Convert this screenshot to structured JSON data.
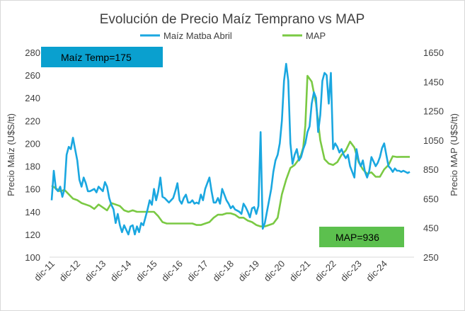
{
  "chart_data": {
    "type": "line",
    "title": "Evolución de Precio Maíz Temprano vs MAP",
    "x_tick_labels": [
      "dic-11",
      "dic-12",
      "dic-13",
      "dic-14",
      "dic-15",
      "dic-16",
      "dic-17",
      "dic-18",
      "dic-19",
      "dic-20",
      "dic-21",
      "dic-22",
      "dic-23",
      "dic-24"
    ],
    "x_unit": "months since dic-11",
    "x_range": [
      -1,
      170
    ],
    "y_left": {
      "label": "Precio Maíz (U$S/tt)",
      "range": [
        100,
        280
      ],
      "ticks": [
        100,
        120,
        140,
        160,
        180,
        200,
        220,
        240,
        260,
        280
      ]
    },
    "y_right": {
      "label": "Precio MAP (U$S/tt)",
      "range": [
        250,
        1650
      ],
      "ticks": [
        250,
        450,
        650,
        850,
        1050,
        1250,
        1450,
        1650
      ]
    },
    "grid": "vertical-none",
    "legend_position": "top",
    "series": [
      {
        "name": "Maíz Matba Abril",
        "axis": "left",
        "color": "#1aa7e0",
        "x": [
          0,
          1,
          2,
          3,
          4,
          5,
          6,
          7,
          8,
          9,
          10,
          11,
          12,
          13,
          14,
          15,
          16,
          17,
          18,
          19,
          20,
          21,
          22,
          23,
          24,
          25,
          26,
          27,
          28,
          29,
          30,
          31,
          32,
          33,
          34,
          35,
          36,
          37,
          38,
          39,
          40,
          41,
          42,
          43,
          44,
          45,
          46,
          47,
          48,
          49,
          50,
          51,
          52,
          53,
          54,
          55,
          56,
          57,
          58,
          59,
          60,
          61,
          62,
          63,
          64,
          65,
          66,
          67,
          68,
          69,
          70,
          71,
          72,
          73,
          74,
          75,
          76,
          77,
          78,
          79,
          80,
          81,
          82,
          83,
          84,
          85,
          86,
          87,
          88,
          89,
          90,
          91,
          92,
          93,
          94,
          95,
          96,
          97,
          98,
          99,
          100,
          101,
          102,
          103,
          104,
          105,
          106,
          107,
          108,
          109,
          110,
          111,
          112,
          113,
          114,
          115,
          116,
          117,
          118,
          119,
          120,
          121,
          122,
          123,
          124,
          125,
          126,
          127,
          128,
          129,
          130,
          131,
          132,
          133,
          134,
          135,
          136,
          137,
          138,
          139,
          140,
          141,
          142,
          143,
          144,
          145,
          146,
          147,
          148,
          149,
          150,
          151,
          152,
          153,
          154,
          155,
          156,
          157,
          158,
          159,
          160,
          161,
          162,
          163,
          164,
          165,
          166,
          167,
          168
        ],
        "values": [
          150,
          176,
          160,
          158,
          162,
          153,
          160,
          190,
          197,
          195,
          205,
          195,
          185,
          168,
          162,
          170,
          165,
          158,
          158,
          159,
          160,
          157,
          162,
          160,
          158,
          166,
          162,
          152,
          146,
          142,
          130,
          138,
          128,
          122,
          128,
          124,
          120,
          127,
          128,
          120,
          127,
          122,
          130,
          128,
          135,
          142,
          150,
          146,
          160,
          150,
          158,
          170,
          153,
          152,
          150,
          148,
          150,
          152,
          158,
          165,
          150,
          147,
          152,
          155,
          148,
          148,
          150,
          147,
          148,
          147,
          155,
          150,
          160,
          165,
          170,
          158,
          148,
          148,
          152,
          147,
          160,
          155,
          150,
          147,
          143,
          145,
          142,
          141,
          140,
          138,
          147,
          144,
          140,
          135,
          143,
          144,
          138,
          145,
          210,
          125,
          130,
          140,
          150,
          160,
          175,
          185,
          190,
          200,
          220,
          255,
          270,
          255,
          200,
          182,
          190,
          195,
          185,
          188,
          195,
          200,
          210,
          215,
          235,
          245,
          240,
          210,
          225,
          255,
          262,
          260,
          235,
          262,
          195,
          200,
          197,
          192,
          195,
          190,
          187,
          190,
          180,
          175,
          170,
          195,
          185,
          180,
          185,
          175,
          170,
          176,
          188,
          184,
          180,
          183,
          188,
          196,
          200,
          190,
          180,
          178,
          175,
          178,
          176,
          176,
          175,
          176,
          175,
          174,
          175
        ]
      },
      {
        "name": "MAP",
        "axis": "right",
        "color": "#7ac943",
        "x": [
          0,
          2,
          4,
          6,
          8,
          10,
          12,
          14,
          16,
          18,
          20,
          22,
          24,
          26,
          28,
          30,
          32,
          34,
          36,
          38,
          40,
          42,
          44,
          46,
          48,
          50,
          52,
          54,
          56,
          58,
          60,
          62,
          64,
          66,
          68,
          70,
          72,
          74,
          76,
          78,
          80,
          82,
          84,
          86,
          88,
          90,
          92,
          94,
          96,
          98,
          100,
          102,
          104,
          106,
          108,
          110,
          112,
          114,
          116,
          117,
          118,
          119,
          120,
          122,
          124,
          126,
          128,
          130,
          132,
          134,
          136,
          138,
          140,
          142,
          144,
          146,
          148,
          150,
          152,
          154,
          156,
          158,
          160,
          162,
          164,
          166,
          168
        ],
        "values": [
          740,
          720,
          700,
          710,
          680,
          650,
          640,
          620,
          610,
          600,
          580,
          610,
          590,
          570,
          620,
          610,
          600,
          570,
          560,
          570,
          560,
          560,
          560,
          560,
          560,
          530,
          490,
          480,
          480,
          480,
          480,
          480,
          480,
          480,
          470,
          470,
          480,
          490,
          520,
          540,
          540,
          550,
          550,
          540,
          520,
          520,
          500,
          490,
          470,
          460,
          460,
          470,
          480,
          520,
          680,
          780,
          860,
          880,
          920,
          950,
          1000,
          1150,
          1490,
          1450,
          1300,
          1050,
          920,
          890,
          880,
          900,
          950,
          980,
          1040,
          1000,
          900,
          850,
          820,
          830,
          800,
          800,
          850,
          880,
          940,
          935,
          936,
          936,
          936
        ]
      }
    ],
    "annotations": [
      {
        "text": "Maíz Temp=175",
        "box_color": "#0aa0cf"
      },
      {
        "text": "MAP=936",
        "box_color": "#5cc04e"
      }
    ]
  }
}
